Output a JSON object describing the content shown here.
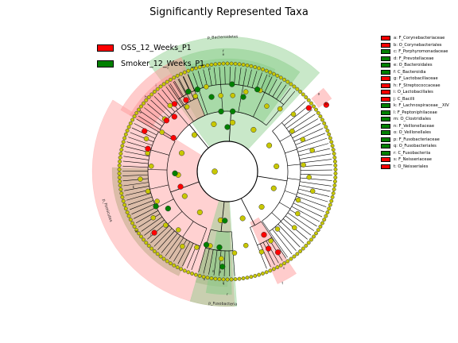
{
  "title": "Significantly Represented Taxa",
  "colors": {
    "oss": "#ff0000",
    "smoker": "#008000",
    "node_ns": "#c8c800",
    "shade_oss": "#ff9999",
    "shade_smoker": "#88cc88",
    "shade_other": "#b8a880"
  },
  "groups": [
    {
      "name": "OSS_12_Weeks_P1",
      "color": "#ff0000"
    },
    {
      "name": "Smoker_12_Weeks_P1",
      "color": "#008000"
    }
  ],
  "chart_data": {
    "type": "cladogram",
    "title": "Significantly Represented Taxa",
    "groups": [
      "OSS_12_Weeks_P1",
      "Smoker_12_Weeks_P1"
    ],
    "taxa": [
      {
        "key": "a",
        "label": "a: F_Corynebacteriaceae",
        "group": "OSS_12_Weeks_P1"
      },
      {
        "key": "b",
        "label": "b: O_Corynebacteriales",
        "group": "OSS_12_Weeks_P1"
      },
      {
        "key": "c",
        "label": "c: F_Porphyromonadaceae",
        "group": "Smoker_12_Weeks_P1"
      },
      {
        "key": "d",
        "label": "d: F_Prevotellaceae",
        "group": "Smoker_12_Weeks_P1"
      },
      {
        "key": "e",
        "label": "e: O_Bacteroidales",
        "group": "Smoker_12_Weeks_P1"
      },
      {
        "key": "f",
        "label": "f: C_Bacteroidia",
        "group": "Smoker_12_Weeks_P1"
      },
      {
        "key": "g",
        "label": "g: F_Lactobacillaceae",
        "group": "OSS_12_Weeks_P1"
      },
      {
        "key": "h",
        "label": "h: F_Streptococcaceae",
        "group": "OSS_12_Weeks_P1"
      },
      {
        "key": "i",
        "label": "i: O_Lactobacillales",
        "group": "OSS_12_Weeks_P1"
      },
      {
        "key": "j",
        "label": "j: C_Bacilli",
        "group": "OSS_12_Weeks_P1"
      },
      {
        "key": "k",
        "label": "k: F_Lachnospiraceae__XIV",
        "group": "Smoker_12_Weeks_P1"
      },
      {
        "key": "l",
        "label": "l: F_Peptoniphilaceae",
        "group": "Smoker_12_Weeks_P1"
      },
      {
        "key": "m",
        "label": "m: O_Clostridiales",
        "group": "Smoker_12_Weeks_P1"
      },
      {
        "key": "n",
        "label": "n: F_Veillonellaceae",
        "group": "Smoker_12_Weeks_P1"
      },
      {
        "key": "o",
        "label": "o: O_Veillonellales",
        "group": "Smoker_12_Weeks_P1"
      },
      {
        "key": "p",
        "label": "p: F_Fusobacteriaceae",
        "group": "Smoker_12_Weeks_P1"
      },
      {
        "key": "q",
        "label": "q: O_Fusobacteriales",
        "group": "Smoker_12_Weeks_P1"
      },
      {
        "key": "r",
        "label": "r: C_Fusobacteriia",
        "group": "Smoker_12_Weeks_P1"
      },
      {
        "key": "s",
        "label": "s: F_Neisseriaceae",
        "group": "OSS_12_Weeks_P1"
      },
      {
        "key": "t",
        "label": "t: O_Neisseriales",
        "group": "OSS_12_Weeks_P1"
      }
    ],
    "phylum_labels": [
      {
        "text": "p_Bacteroidetes",
        "group": "Smoker_12_Weeks_P1"
      },
      {
        "text": "p_Firmicutes",
        "group": "OSS_12_Weeks_P1"
      },
      {
        "text": "p_Fusobacteria",
        "group": "Smoker_12_Weeks_P1"
      }
    ]
  }
}
